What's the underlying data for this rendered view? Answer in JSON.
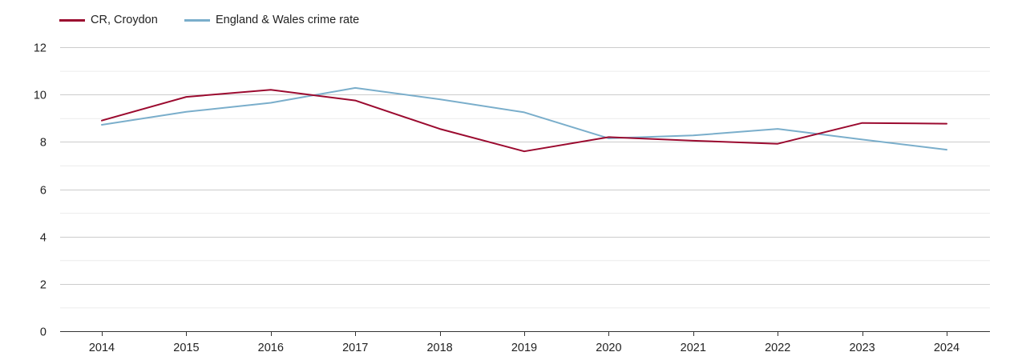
{
  "colors": {
    "series_1": "#9b0a2f",
    "series_2": "#7aaecb",
    "grid_major": "#cccccc",
    "grid_minor": "#ececec",
    "axis": "#333333",
    "text": "#222222"
  },
  "chart_data": {
    "type": "line",
    "title": "",
    "xlabel": "",
    "ylabel": "",
    "x": [
      "2014",
      "2015",
      "2016",
      "2017",
      "2018",
      "2019",
      "2020",
      "2021",
      "2022",
      "2023",
      "2024"
    ],
    "ylim": [
      0,
      12
    ],
    "yticks": [
      0,
      2,
      4,
      6,
      8,
      10,
      12
    ],
    "grid": true,
    "legend_position": "top-left",
    "series": [
      {
        "name": "CR, Croydon",
        "values": [
          8.9,
          9.9,
          10.2,
          9.75,
          8.55,
          7.6,
          8.2,
          8.05,
          7.92,
          8.8,
          8.77
        ]
      },
      {
        "name": "England & Wales crime rate",
        "values": [
          8.72,
          9.27,
          9.65,
          10.28,
          9.8,
          9.25,
          8.15,
          8.27,
          8.55,
          8.1,
          7.67
        ]
      }
    ]
  }
}
